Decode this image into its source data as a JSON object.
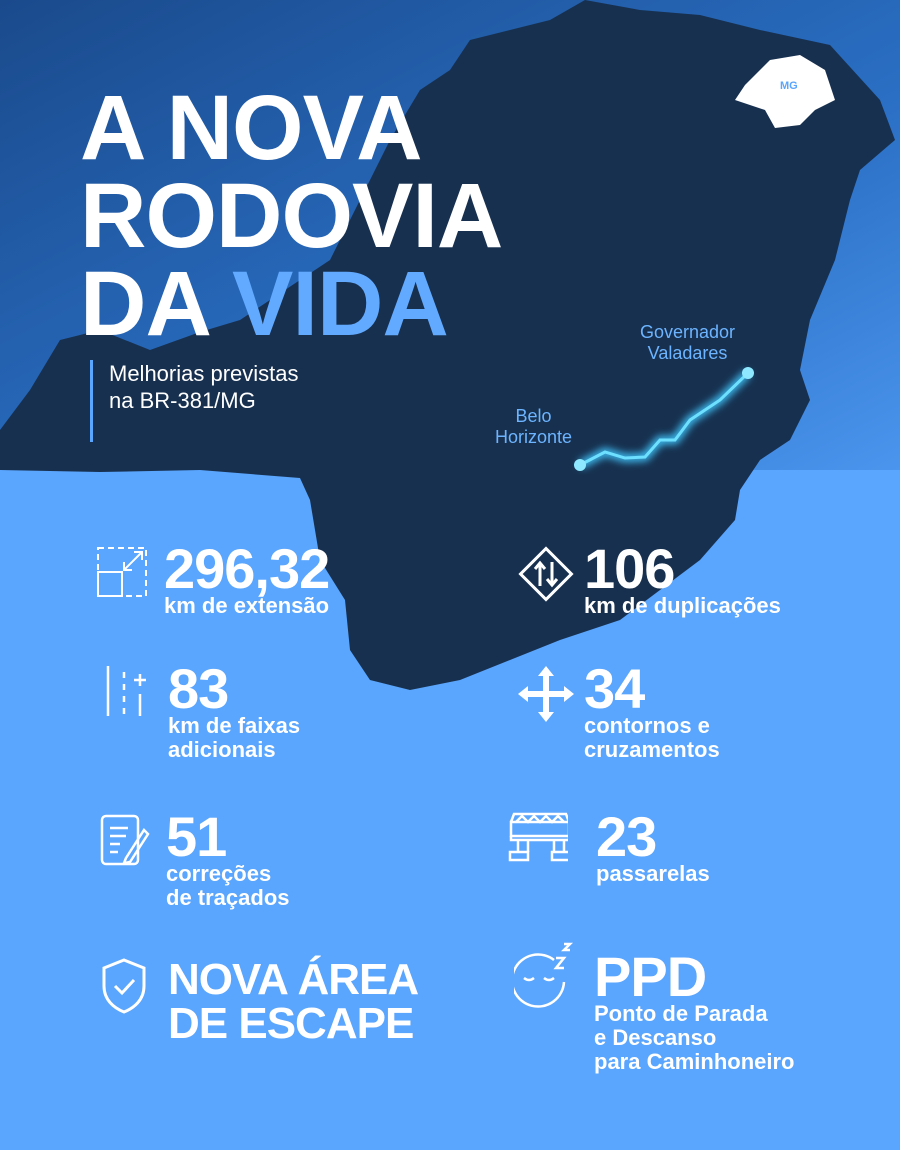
{
  "title": {
    "line1": "A NOVA",
    "line2": "RODOVIA",
    "line3a": "DA",
    "line3b": "VIDA"
  },
  "subtitle": {
    "line1": "Melhorias previstas",
    "line2": "na BR-381/MG"
  },
  "map": {
    "state_label": "MG",
    "cities": [
      {
        "line1": "Belo",
        "line2": "Horizonte"
      },
      {
        "line1": "Governador",
        "line2": "Valadares"
      }
    ],
    "colors": {
      "map": "#17304f",
      "route": "#3fc8ff",
      "background": "#5aa5fd"
    }
  },
  "stats": [
    {
      "icon": "area-expand-icon",
      "value": "296,32",
      "label": [
        "km de extensão"
      ]
    },
    {
      "icon": "road-sign-two-way-icon",
      "value": "106",
      "label": [
        "km de duplicações"
      ]
    },
    {
      "icon": "extra-lane-icon",
      "value": "83",
      "label": [
        "km de faixas",
        "adicionais"
      ]
    },
    {
      "icon": "four-arrows-icon",
      "value": "34",
      "label": [
        "contornos e",
        "cruzamentos"
      ]
    },
    {
      "icon": "document-edit-icon",
      "value": "51",
      "label": [
        "correções",
        "de traçados"
      ]
    },
    {
      "icon": "footbridge-icon",
      "value": "23",
      "label": [
        "passarelas"
      ]
    },
    {
      "icon": "shield-check-icon",
      "value": "NOVA ÁREA",
      "value2": "DE ESCAPE",
      "label": []
    },
    {
      "icon": "sleeping-face-icon",
      "value": "PPD",
      "label": [
        "Ponto de Parada",
        "e Descanso",
        "para Caminhoneiro"
      ]
    }
  ]
}
